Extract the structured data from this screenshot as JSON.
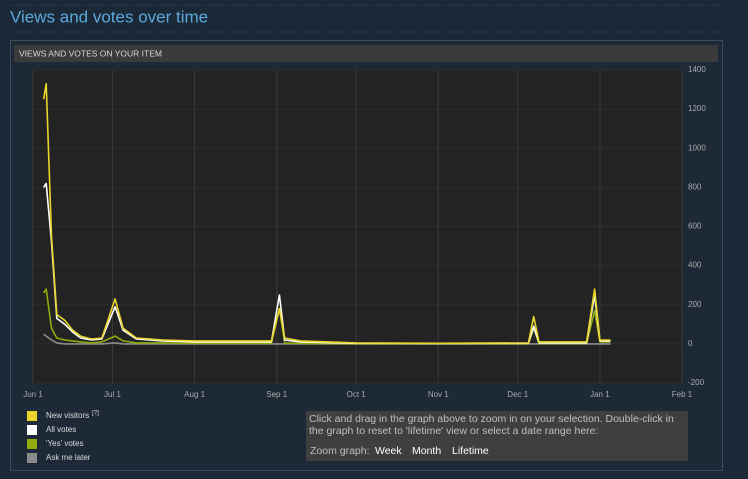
{
  "header": {
    "title": "Views and votes over time"
  },
  "panel_title": "VIEWS AND VOTES ON YOUR ITEM",
  "legend_help": "[?]",
  "zoom": {
    "hint": "Click and drag in the graph above to zoom in on your selection. Double-click in the graph to reset to 'lifetime' view or select a date range here:",
    "label": "Zoom graph:",
    "options": [
      "Week",
      "Month",
      "Lifetime"
    ]
  },
  "chart_data": {
    "type": "line",
    "x": [
      "06-05",
      "06-06",
      "06-08",
      "06-10",
      "06-13",
      "06-16",
      "06-19",
      "06-23",
      "06-27",
      "07-02",
      "07-05",
      "07-10",
      "07-20",
      "08-01",
      "08-15",
      "08-30",
      "09-02",
      "09-04",
      "09-10",
      "10-01",
      "11-01",
      "12-05",
      "12-07",
      "12-09",
      "12-27",
      "12-30",
      "01-01",
      "01-05"
    ],
    "series": [
      {
        "name": "Ask me later",
        "color": "#8c8c8c",
        "values": [
          50,
          40,
          20,
          5,
          0,
          0,
          0,
          0,
          0,
          5,
          0,
          0,
          0,
          0,
          0,
          0,
          0,
          0,
          0,
          0,
          0,
          0,
          0,
          0,
          0,
          0,
          0,
          0
        ]
      },
      {
        "name": "'Yes' votes",
        "color": "#8fae0e",
        "values": [
          260,
          280,
          80,
          30,
          20,
          15,
          10,
          5,
          10,
          40,
          15,
          5,
          5,
          3,
          3,
          3,
          180,
          5,
          3,
          1,
          1,
          1,
          80,
          2,
          2,
          170,
          10,
          10
        ]
      },
      {
        "name": "All votes",
        "color": "#ffffff",
        "values": [
          800,
          820,
          520,
          130,
          100,
          60,
          30,
          20,
          25,
          190,
          70,
          25,
          15,
          10,
          10,
          10,
          250,
          20,
          10,
          3,
          2,
          3,
          90,
          5,
          5,
          250,
          15,
          15
        ]
      },
      {
        "name": "New visitors",
        "color": "#e9d62c",
        "values": [
          1250,
          1330,
          550,
          150,
          120,
          70,
          40,
          25,
          30,
          230,
          80,
          30,
          20,
          15,
          15,
          15,
          180,
          30,
          15,
          5,
          3,
          5,
          140,
          10,
          10,
          280,
          20,
          20
        ]
      }
    ],
    "legend_order": [
      "New visitors",
      "All votes",
      "'Yes' votes",
      "Ask me later"
    ],
    "xlim": [
      "06-01",
      "02-01"
    ],
    "xticks": [
      {
        "value": "06-01",
        "label": "Jun 1"
      },
      {
        "value": "07-01",
        "label": "Jul 1"
      },
      {
        "value": "08-01",
        "label": "Aug 1"
      },
      {
        "value": "09-01",
        "label": "Sep 1"
      },
      {
        "value": "10-01",
        "label": "Oct 1"
      },
      {
        "value": "11-01",
        "label": "Nov 1"
      },
      {
        "value": "12-01",
        "label": "Dec 1"
      },
      {
        "value": "01-01",
        "label": "Jan 1"
      },
      {
        "value": "02-01",
        "label": "Feb 1"
      }
    ],
    "ylim": [
      -200,
      1400
    ],
    "yticks": [
      -200,
      0,
      200,
      400,
      600,
      800,
      1000,
      1200,
      1400
    ],
    "grid": true
  }
}
